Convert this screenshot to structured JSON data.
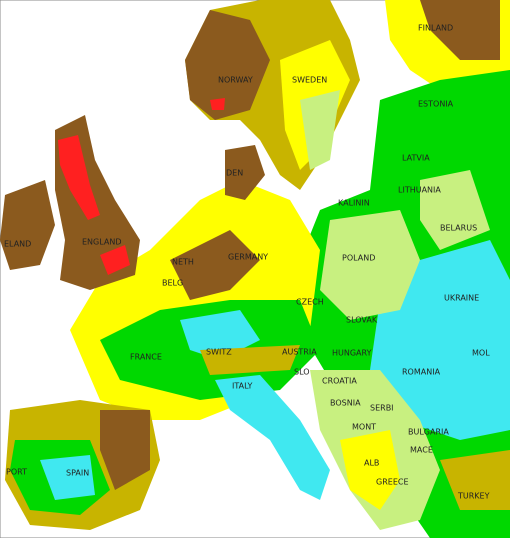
{
  "labels": [
    "FINLAND",
    "NORWAY",
    "SWEDEN",
    "ESTONIA",
    "LATVIA",
    "DEN",
    "LITHUANIA",
    "KALININ",
    "ELAND",
    "ENGLAND",
    "BELARUS",
    "POLAND",
    "GERMANY",
    "NETH",
    "BELG",
    "UKRAINE",
    "CZECH",
    "SLOVAK",
    "FRANCE",
    "SWITZ",
    "AUSTRIA",
    "HUNGARY",
    "MOL",
    "ROMANIA",
    "CROATIA",
    "BOSNIA",
    "SERBI",
    "ITALY",
    "SLO",
    "MONT",
    "BULGARIA",
    "MACE",
    "ALB",
    "PORT",
    "SPAIN",
    "GREECE",
    "TURKEY"
  ]
}
